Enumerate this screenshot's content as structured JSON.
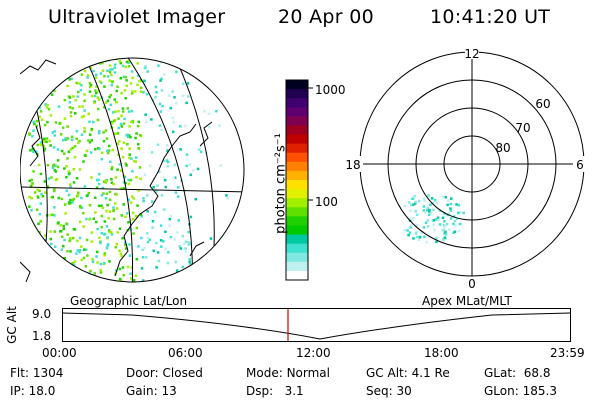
{
  "header": {
    "instrument": "Ultraviolet Imager",
    "date": "20 Apr 00",
    "time": "10:41:20 UT"
  },
  "colorbar": {
    "unit_label": "photon cm⁻²s⁻¹",
    "tick_1000": "1000",
    "tick_100": "100",
    "colors": [
      "#000020",
      "#200050",
      "#400070",
      "#600070",
      "#800050",
      "#a00020",
      "#c00000",
      "#e02000",
      "#ff5000",
      "#ff8000",
      "#ffb000",
      "#ffe000",
      "#e0f000",
      "#a0f000",
      "#60e000",
      "#20d000",
      "#00c800",
      "#00c8a0",
      "#40e0d0",
      "#80e8e0",
      "#c0f0f0",
      "#ffffff"
    ]
  },
  "polar": {
    "lat_60": "60",
    "lat_70": "70",
    "lat_80": "80",
    "mlt_12": "12",
    "mlt_18": "18",
    "mlt_6": "6",
    "mlt_0": "0"
  },
  "labels": {
    "geo": "Geographic Lat/Lon",
    "apex": "Apex MLat/MLT"
  },
  "timeline": {
    "axis_label": "GC Alt",
    "y_max": "9.0",
    "y_min": "1.8",
    "ticks": [
      "00:00",
      "06:00",
      "12:00",
      "18:00",
      "23:59"
    ],
    "marker_color": "#d00000"
  },
  "info": {
    "flt_label": "Flt:",
    "flt_value": "1304",
    "ip_label": "IP:",
    "ip_value": "18.0",
    "door_label": "Door:",
    "door_value": "Closed",
    "gain_label": "Gain:",
    "gain_value": "13",
    "mode_label": "Mode:",
    "mode_value": "Normal",
    "dsp_label": "Dsp:",
    "dsp_value": "3.1",
    "gcalt_label": "GC Alt:",
    "gcalt_value": "4.1 Re",
    "seq_label": "Seq:",
    "seq_value": "30",
    "glat_label": "GLat:",
    "glat_value": "68.8",
    "glon_label": "GLon:",
    "glon_value": "185.3"
  }
}
